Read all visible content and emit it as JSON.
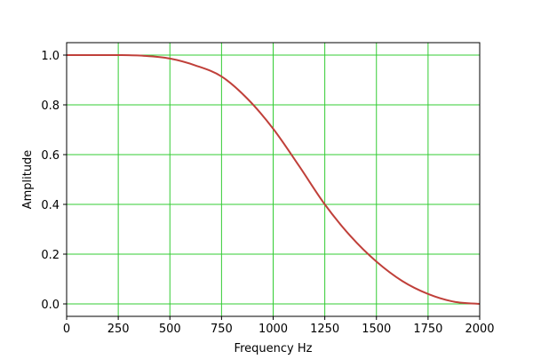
{
  "chart_data": {
    "type": "line",
    "title": "",
    "xlabel": "Frequency Hz",
    "ylabel": "Amplitude",
    "xlim": [
      0,
      2000
    ],
    "ylim": [
      -0.05,
      1.05
    ],
    "xticks": [
      0,
      250,
      500,
      750,
      1000,
      1250,
      1500,
      1750,
      2000
    ],
    "yticks": [
      0.0,
      0.2,
      0.4,
      0.6,
      0.8,
      1.0
    ],
    "xtick_labels": [
      "0",
      "250",
      "500",
      "750",
      "1000",
      "1250",
      "1500",
      "1750",
      "2000"
    ],
    "ytick_labels": [
      "0.0",
      "0.2",
      "0.4",
      "0.6",
      "0.8",
      "1.0"
    ],
    "grid": true,
    "grid_color": "#33cc33",
    "line_color": "#c0403a",
    "series": [
      {
        "x": [
          0,
          125,
          250,
          375,
          500,
          625,
          750,
          875,
          1000,
          1125,
          1250,
          1375,
          1500,
          1625,
          1750,
          1875,
          2000
        ],
        "y": [
          1.0,
          1.0,
          1.0,
          0.997,
          0.986,
          0.958,
          0.914,
          0.825,
          0.704,
          0.555,
          0.4,
          0.272,
          0.17,
          0.092,
          0.04,
          0.009,
          0.0
        ]
      }
    ]
  }
}
